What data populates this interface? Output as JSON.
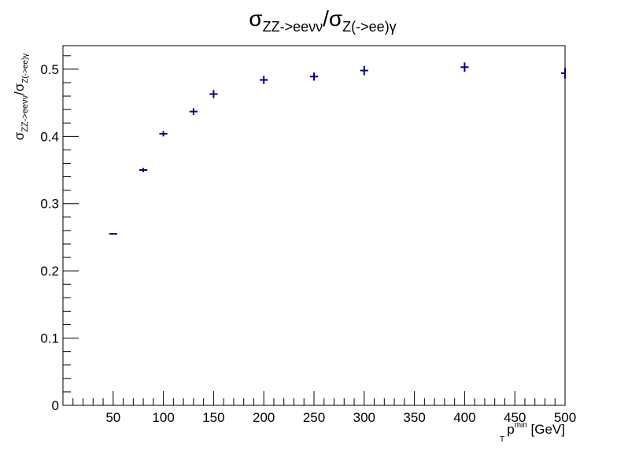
{
  "chart_data": {
    "type": "scatter",
    "title": {
      "sigma": "σ",
      "num_sub": "ZZ->eeνν",
      "slash": "/",
      "den_sub": "Z(->ee)γ"
    },
    "ylabel": {
      "sigma": "σ",
      "num_sub": "ZZ->eeνν",
      "slash": "/",
      "den_sub": "Z(->ee)γ"
    },
    "xlabel": {
      "base": "p",
      "sub": "T",
      "sup": "min",
      "unit": " [GeV]"
    },
    "xlim": [
      0,
      500
    ],
    "ylim": [
      0,
      0.535
    ],
    "x_ticks": [
      50,
      100,
      150,
      200,
      250,
      300,
      350,
      400,
      450,
      500
    ],
    "x_tick_labels": [
      "50",
      "100",
      "150",
      "200",
      "250",
      "300",
      "350",
      "400",
      "450",
      "500"
    ],
    "y_ticks": [
      0,
      0.1,
      0.2,
      0.3,
      0.4,
      0.5
    ],
    "y_tick_labels": [
      "0",
      "0.1",
      "0.2",
      "0.3",
      "0.4",
      "0.5"
    ],
    "grid": false,
    "marker_color": "#000080",
    "series": [
      {
        "x": [
          50,
          80,
          100,
          130,
          150,
          200,
          250,
          300,
          400,
          500
        ],
        "y": [
          0.255,
          0.35,
          0.404,
          0.437,
          0.463,
          0.484,
          0.489,
          0.498,
          0.503,
          0.494
        ],
        "xerr": [
          4,
          4,
          4,
          4,
          4,
          4,
          4,
          4,
          4,
          4
        ],
        "yerr": [
          0.001,
          0.003,
          0.004,
          0.005,
          0.006,
          0.006,
          0.006,
          0.007,
          0.007,
          0.008
        ]
      }
    ]
  }
}
